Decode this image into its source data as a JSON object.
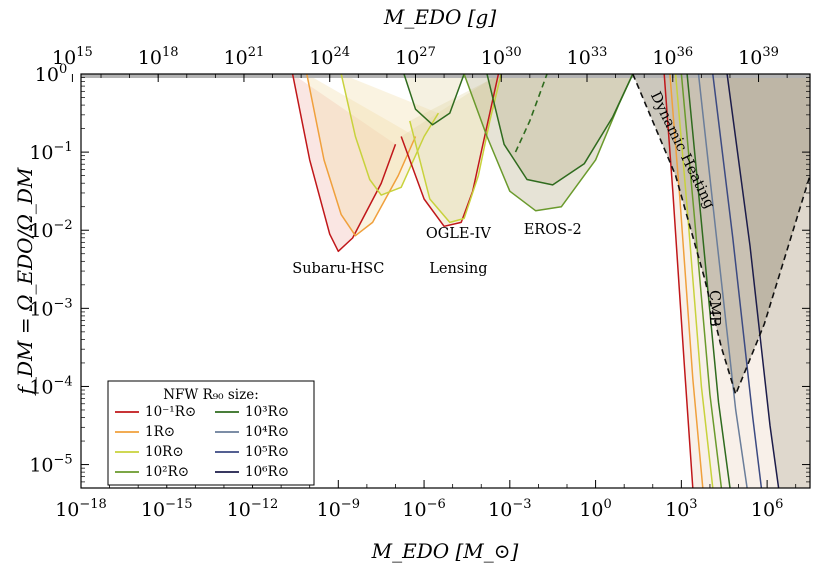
{
  "chart_data": {
    "type": "line",
    "xlabel": "M_EDO [M_⊙]",
    "ylabel": "f_DM = Ω_EDO/Ω_DM",
    "top_xlabel": "M_EDO [g]",
    "x_scale": "log",
    "y_scale": "log",
    "xlim_log10": [
      -18,
      7.5
    ],
    "ylim_log10": [
      -5.3,
      0
    ],
    "x_ticks": [
      {
        "base": "10",
        "exp": "−18",
        "log": -18
      },
      {
        "base": "10",
        "exp": "−15",
        "log": -15
      },
      {
        "base": "10",
        "exp": "−12",
        "log": -12
      },
      {
        "base": "10",
        "exp": "−9",
        "log": -9
      },
      {
        "base": "10",
        "exp": "−6",
        "log": -6
      },
      {
        "base": "10",
        "exp": "−3",
        "log": -3
      },
      {
        "base": "10",
        "exp": "0",
        "log": 0
      },
      {
        "base": "10",
        "exp": "3",
        "log": 3
      },
      {
        "base": "10",
        "exp": "6",
        "log": 6
      }
    ],
    "top_ticks": [
      {
        "base": "10",
        "exp": "15",
        "log_msun": -18.3
      },
      {
        "base": "10",
        "exp": "18",
        "log_msun": -15.3
      },
      {
        "base": "10",
        "exp": "21",
        "log_msun": -12.3
      },
      {
        "base": "10",
        "exp": "24",
        "log_msun": -9.3
      },
      {
        "base": "10",
        "exp": "27",
        "log_msun": -6.3
      },
      {
        "base": "10",
        "exp": "30",
        "log_msun": -3.3
      },
      {
        "base": "10",
        "exp": "33",
        "log_msun": -0.3
      },
      {
        "base": "10",
        "exp": "36",
        "log_msun": 2.7
      },
      {
        "base": "10",
        "exp": "39",
        "log_msun": 5.7
      }
    ],
    "y_ticks": [
      {
        "base": "10",
        "exp": "0",
        "log": 0
      },
      {
        "base": "10",
        "exp": "−1",
        "log": -1
      },
      {
        "base": "10",
        "exp": "−2",
        "log": -2
      },
      {
        "base": "10",
        "exp": "−3",
        "log": -3
      },
      {
        "base": "10",
        "exp": "−4",
        "log": -4
      },
      {
        "base": "10",
        "exp": "−5",
        "log": -5
      }
    ],
    "legend": {
      "title": "NFW R₉₀ size:",
      "placement": "lower-left",
      "entries": [
        {
          "label": "10⁻¹R⊙",
          "color": "#c0171a"
        },
        {
          "label": "1R⊙",
          "color": "#f0a03c"
        },
        {
          "label": "10R⊙",
          "color": "#c8d23c"
        },
        {
          "label": "10²R⊙",
          "color": "#6a9a2c"
        },
        {
          "label": "10³R⊙",
          "color": "#2f6b1e"
        },
        {
          "label": "10⁴R⊙",
          "color": "#6a7d9a"
        },
        {
          "label": "10⁵R⊙",
          "color": "#3c4a82"
        },
        {
          "label": "10⁶R⊙",
          "color": "#1c1c4a"
        }
      ]
    },
    "annotations": [
      {
        "text": "Subaru-HSC",
        "x_log": -9,
        "y_log": -2.55
      },
      {
        "text": "OGLE-IV",
        "x_log": -4.8,
        "y_log": -2.1
      },
      {
        "text": "Lensing",
        "x_log": -4.8,
        "y_log": -2.55
      },
      {
        "text": "EROS-2",
        "x_log": -1.5,
        "y_log": -2.05
      },
      {
        "text": "Dynamic Heating",
        "x_log": 2.9,
        "y_log": -1.0,
        "rotate": 64
      },
      {
        "text": "CMB",
        "x_log": 4.0,
        "y_log": -3.0,
        "rotate": 90
      }
    ],
    "series": [
      {
        "group": "hsc",
        "color": "#c0171a",
        "points": [
          [
            -10.6,
            0
          ],
          [
            -10,
            -1.1
          ],
          [
            -9.3,
            -2.05
          ],
          [
            -9,
            -2.27
          ],
          [
            -8.5,
            -2.1
          ],
          [
            -7.5,
            -1.4
          ],
          [
            -7,
            -0.9
          ]
        ]
      },
      {
        "group": "hsc",
        "color": "#f0a03c",
        "points": [
          [
            -10.1,
            0
          ],
          [
            -9.5,
            -1.1
          ],
          [
            -8.9,
            -1.8
          ],
          [
            -8.4,
            -2.07
          ],
          [
            -7.8,
            -1.9
          ],
          [
            -6.9,
            -1.3
          ],
          [
            -6.3,
            -0.8
          ]
        ]
      },
      {
        "group": "hsc",
        "color": "#c8d23c",
        "points": [
          [
            -8.9,
            0
          ],
          [
            -8.4,
            -0.8
          ],
          [
            -7.9,
            -1.35
          ],
          [
            -7.5,
            -1.55
          ],
          [
            -6.8,
            -1.45
          ],
          [
            -6,
            -0.8
          ],
          [
            -5.5,
            -0.5
          ]
        ]
      },
      {
        "group": "ogle",
        "color": "#c0171a",
        "points": [
          [
            -6.8,
            -0.8
          ],
          [
            -6,
            -1.6
          ],
          [
            -5.3,
            -1.95
          ],
          [
            -4.7,
            -1.9
          ],
          [
            -4.3,
            -1.5
          ],
          [
            -4,
            -1
          ],
          [
            -3.7,
            -0.5
          ],
          [
            -3.4,
            0
          ]
        ]
      },
      {
        "group": "ogle",
        "color": "#c8d23c",
        "points": [
          [
            -6.5,
            -0.6
          ],
          [
            -5.8,
            -1.6
          ],
          [
            -5.1,
            -1.9
          ],
          [
            -4.6,
            -1.85
          ],
          [
            -4.1,
            -1.3
          ],
          [
            -3.7,
            -0.6
          ],
          [
            -3.3,
            0
          ]
        ]
      },
      {
        "group": "ogle",
        "color": "#2f6b1e",
        "points": [
          [
            -6.7,
            0
          ],
          [
            -6.3,
            -0.45
          ],
          [
            -5.7,
            -0.65
          ],
          [
            -5.1,
            -0.5
          ],
          [
            -4.6,
            0
          ]
        ]
      },
      {
        "group": "eros",
        "color": "#6a9a2c",
        "points": [
          [
            -4.6,
            0
          ],
          [
            -3.8,
            -0.8
          ],
          [
            -3,
            -1.5
          ],
          [
            -2.1,
            -1.75
          ],
          [
            -1.2,
            -1.7
          ],
          [
            0,
            -1.1
          ],
          [
            0.8,
            -0.4
          ],
          [
            1.3,
            0
          ]
        ]
      },
      {
        "group": "eros",
        "color": "#2f6b1e",
        "points": [
          [
            -3.8,
            0
          ],
          [
            -3.2,
            -0.9
          ],
          [
            -2.4,
            -1.35
          ],
          [
            -1.5,
            -1.42
          ],
          [
            -0.4,
            -1.15
          ],
          [
            0.6,
            -0.55
          ],
          [
            1.3,
            0
          ]
        ]
      },
      {
        "group": "eros-dashed",
        "color": "#2f6b1e",
        "points": [
          [
            -2.8,
            -1
          ],
          [
            -2.3,
            -0.6
          ],
          [
            -1.9,
            -0.2
          ],
          [
            -1.7,
            0
          ]
        ]
      },
      {
        "group": "cmb",
        "color": "#c0171a",
        "points": [
          [
            2.4,
            0
          ],
          [
            2.7,
            -1.5
          ],
          [
            3.1,
            -3.7
          ],
          [
            3.4,
            -5.3
          ]
        ]
      },
      {
        "group": "cmb",
        "color": "#f0a03c",
        "points": [
          [
            2.6,
            0
          ],
          [
            2.95,
            -1.6
          ],
          [
            3.4,
            -3.9
          ],
          [
            3.75,
            -5.3
          ]
        ]
      },
      {
        "group": "cmb",
        "color": "#c8d23c",
        "points": [
          [
            2.8,
            0
          ],
          [
            3.2,
            -1.7
          ],
          [
            3.7,
            -4.0
          ],
          [
            4.1,
            -5.3
          ]
        ]
      },
      {
        "group": "cmb",
        "color": "#6a9a2c",
        "points": [
          [
            3.0,
            0
          ],
          [
            3.45,
            -1.8
          ],
          [
            4.0,
            -4.1
          ],
          [
            4.4,
            -5.3
          ]
        ]
      },
      {
        "group": "cmb",
        "color": "#2f6b1e",
        "points": [
          [
            3.2,
            0
          ],
          [
            3.7,
            -1.9
          ],
          [
            4.3,
            -4.2
          ],
          [
            4.7,
            -5.3
          ]
        ]
      },
      {
        "group": "cmb",
        "color": "#6a7d9a",
        "points": [
          [
            3.6,
            0
          ],
          [
            4.2,
            -2.0
          ],
          [
            4.9,
            -4.3
          ],
          [
            5.3,
            -5.3
          ]
        ]
      },
      {
        "group": "cmb",
        "color": "#3c4a82",
        "points": [
          [
            4.1,
            0
          ],
          [
            4.8,
            -2.1
          ],
          [
            5.5,
            -4.4
          ],
          [
            5.8,
            -5.3
          ]
        ]
      },
      {
        "group": "cmb",
        "color": "#1c1c4a",
        "points": [
          [
            4.6,
            0
          ],
          [
            5.4,
            -2.2
          ],
          [
            6.1,
            -4.5
          ],
          [
            6.4,
            -5.3
          ]
        ]
      },
      {
        "group": "dynamic",
        "color": "#111111",
        "points": [
          [
            1.3,
            0
          ],
          [
            2.8,
            -1.3
          ],
          [
            3.8,
            -2.6
          ],
          [
            4.4,
            -3.5
          ],
          [
            4.9,
            -4.1
          ],
          [
            5.9,
            -3.2
          ],
          [
            7.5,
            -1.3
          ]
        ]
      }
    ]
  }
}
